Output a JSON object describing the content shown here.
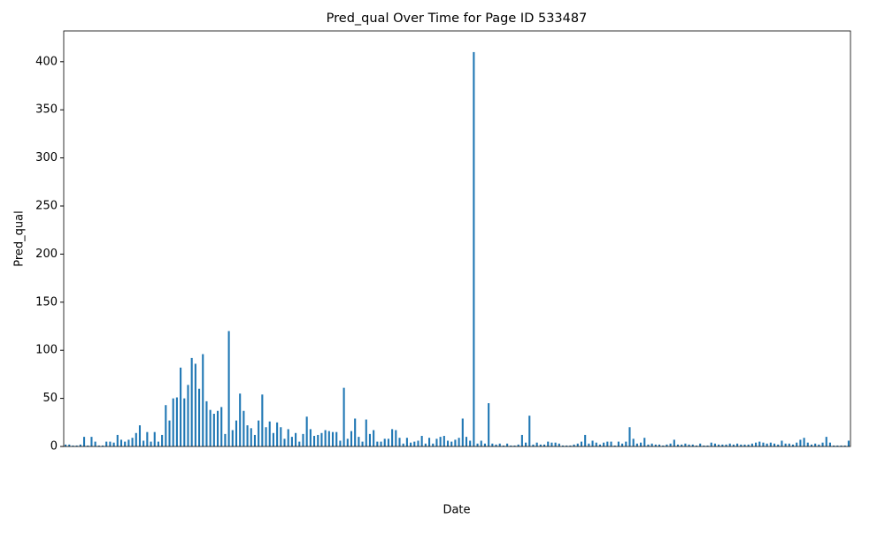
{
  "chart_data": {
    "type": "bar",
    "title": "Pred_qual Over Time for Page ID 533487",
    "x_label": "Date",
    "y_label": "Pred_qual",
    "color": "#1f77b4",
    "values": [
      2,
      2,
      1,
      1,
      2,
      10,
      1,
      10,
      5,
      1,
      1,
      5,
      5,
      4,
      12,
      7,
      5,
      7,
      9,
      14,
      22,
      6,
      15,
      5,
      15,
      5,
      12,
      43,
      27,
      50,
      51,
      82,
      50,
      64,
      92,
      86,
      60,
      96,
      47,
      38,
      34,
      37,
      41,
      13,
      120,
      17,
      27,
      55,
      37,
      22,
      19,
      12,
      27,
      54,
      20,
      26,
      14,
      25,
      20,
      8,
      18,
      10,
      14,
      5,
      13,
      31,
      18,
      11,
      12,
      14,
      17,
      16,
      15,
      15,
      6,
      61,
      8,
      16,
      29,
      10,
      5,
      28,
      13,
      17,
      5,
      5,
      8,
      8,
      18,
      17,
      9,
      3,
      9,
      4,
      5,
      6,
      11,
      3,
      9,
      3,
      8,
      10,
      11,
      6,
      5,
      7,
      9,
      29,
      10,
      6,
      410,
      3,
      6,
      3,
      45,
      3,
      2,
      3,
      1,
      3,
      1,
      1,
      2,
      12,
      4,
      32,
      2,
      4,
      2,
      2,
      5,
      4,
      4,
      3,
      1,
      1,
      1,
      2,
      3,
      5,
      12,
      3,
      6,
      4,
      2,
      4,
      5,
      5,
      1,
      5,
      3,
      5,
      20,
      8,
      3,
      4,
      9,
      2,
      3,
      2,
      2,
      1,
      2,
      3,
      7,
      2,
      2,
      3,
      2,
      2,
      1,
      3,
      1,
      1,
      4,
      3,
      2,
      2,
      2,
      3,
      2,
      3,
      2,
      2,
      2,
      3,
      4,
      5,
      4,
      3,
      4,
      3,
      2,
      6,
      3,
      3,
      2,
      4,
      7,
      9,
      4,
      2,
      3,
      2,
      4,
      10,
      4,
      1,
      1,
      1,
      1,
      6
    ],
    "ylim": [
      0,
      432
    ],
    "yticks": [
      0,
      50,
      100,
      150,
      200,
      250,
      300,
      350,
      400
    ]
  }
}
